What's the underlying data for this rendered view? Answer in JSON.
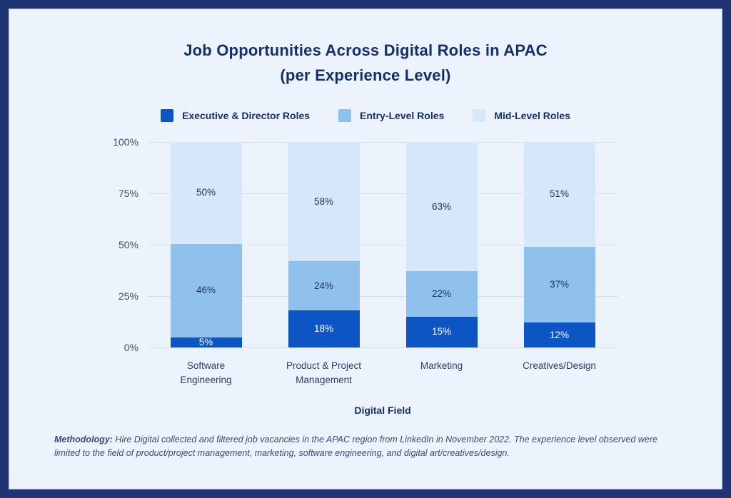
{
  "frame": {
    "border_color": "#1d3372",
    "background": "#ecf3fc"
  },
  "title": {
    "line1": "Job Opportunities Across Digital Roles in APAC",
    "line2": "(per Experience Level)"
  },
  "chart_data": {
    "type": "bar",
    "stacked": true,
    "title": "Job Opportunities Across Digital Roles in APAC (per Experience Level)",
    "categories": [
      "Software\nEngineering",
      "Product & Project\nManagement",
      "Marketing",
      "Creatives/Design"
    ],
    "series": [
      {
        "name": "Executive & Director Roles",
        "color": "#0d55c3",
        "label_color": "#ffffff",
        "values": [
          5,
          18,
          15,
          12
        ]
      },
      {
        "name": "Entry-Level Roles",
        "color": "#90c0ec",
        "label_color": "#1e3468",
        "values": [
          46,
          24,
          22,
          37
        ]
      },
      {
        "name": "Mid-Level Roles",
        "color": "#d7e7fa",
        "label_color": "#1e3468",
        "values": [
          50,
          58,
          63,
          51
        ]
      }
    ],
    "value_suffix": "%",
    "xlabel": "Digital Field",
    "ylabel": "",
    "yticks": [
      "0%",
      "25%",
      "50%",
      "75%",
      "100%"
    ],
    "ylim": [
      0,
      100
    ],
    "grid": true,
    "legend_position": "top",
    "gridline_color": "#d2e0f0"
  },
  "footnote": {
    "label": "Methodology:",
    "text": " Hire Digital collected and filtered job vacancies in the APAC region from LinkedIn in November 2022. The experience level observed were limited to the field of product/project management, marketing, software engineering, and digital art/creatives/design."
  }
}
